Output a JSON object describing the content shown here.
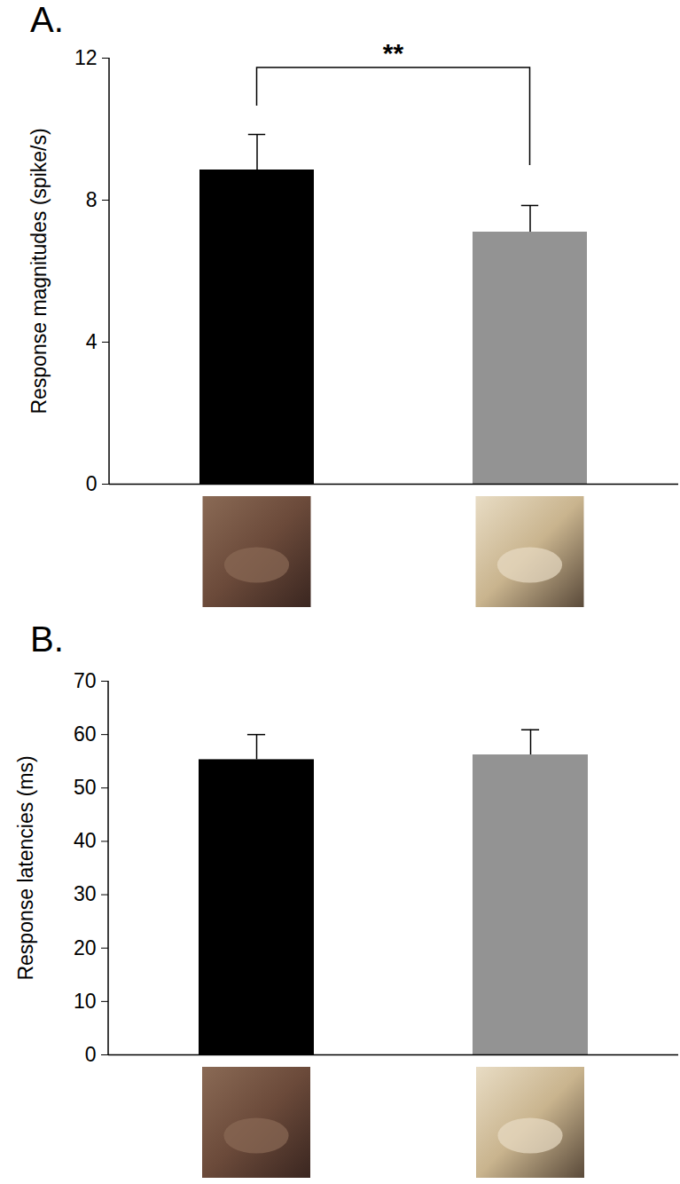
{
  "chart_data": [
    {
      "type": "bar",
      "title": "A.",
      "y_label": "Response magnitudes (spike/s)",
      "categories": [
        null,
        null
      ],
      "values": [
        8.85,
        7.1
      ],
      "errors": [
        1.0,
        0.75
      ],
      "colors": [
        "#000000",
        "#939393"
      ],
      "ylim": [
        0,
        12
      ],
      "yticks": [
        0,
        4,
        8,
        12
      ],
      "annotation": "**"
    },
    {
      "type": "bar",
      "title": "B.",
      "y_label": "Response latencies (ms)",
      "categories": [
        null,
        null
      ],
      "values": [
        55.3,
        56.2
      ],
      "errors": [
        4.7,
        4.7
      ],
      "colors": [
        "#000000",
        "#939393"
      ],
      "ylim": [
        0,
        70
      ],
      "yticks": [
        0,
        10,
        20,
        30,
        40,
        50,
        60,
        70
      ]
    }
  ]
}
